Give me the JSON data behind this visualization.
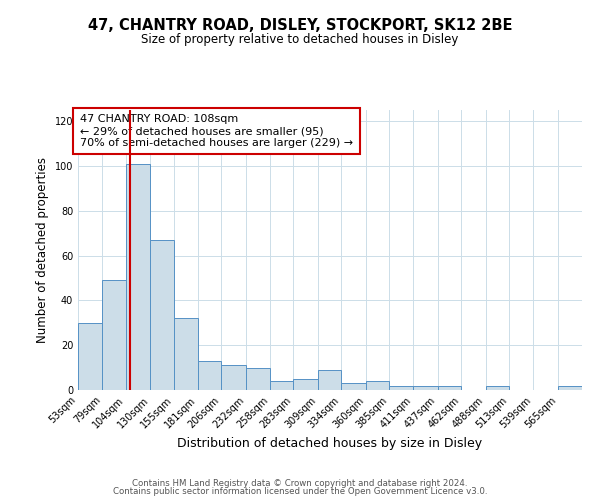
{
  "title": "47, CHANTRY ROAD, DISLEY, STOCKPORT, SK12 2BE",
  "subtitle": "Size of property relative to detached houses in Disley",
  "xlabel": "Distribution of detached houses by size in Disley",
  "ylabel": "Number of detached properties",
  "bin_labels": [
    "53sqm",
    "79sqm",
    "104sqm",
    "130sqm",
    "155sqm",
    "181sqm",
    "206sqm",
    "232sqm",
    "258sqm",
    "283sqm",
    "309sqm",
    "334sqm",
    "360sqm",
    "385sqm",
    "411sqm",
    "437sqm",
    "462sqm",
    "488sqm",
    "513sqm",
    "539sqm",
    "565sqm"
  ],
  "bin_edges": [
    53,
    79,
    104,
    130,
    155,
    181,
    206,
    232,
    258,
    283,
    309,
    334,
    360,
    385,
    411,
    437,
    462,
    488,
    513,
    539,
    565,
    591
  ],
  "bar_heights": [
    30,
    49,
    101,
    67,
    32,
    13,
    11,
    10,
    4,
    5,
    9,
    3,
    4,
    2,
    2,
    2,
    0,
    2,
    0,
    0,
    2
  ],
  "bar_color": "#ccdde8",
  "bar_edge_color": "#5591c5",
  "red_line_x": 108,
  "annotation_line1": "47 CHANTRY ROAD: 108sqm",
  "annotation_line2": "← 29% of detached houses are smaller (95)",
  "annotation_line3": "70% of semi-detached houses are larger (229) →",
  "annotation_box_edge": "#cc0000",
  "ylim": [
    0,
    125
  ],
  "yticks": [
    0,
    20,
    40,
    60,
    80,
    100,
    120
  ],
  "footer1": "Contains HM Land Registry data © Crown copyright and database right 2024.",
  "footer2": "Contains public sector information licensed under the Open Government Licence v3.0.",
  "bg_color": "#ffffff",
  "grid_color": "#ccdde8"
}
